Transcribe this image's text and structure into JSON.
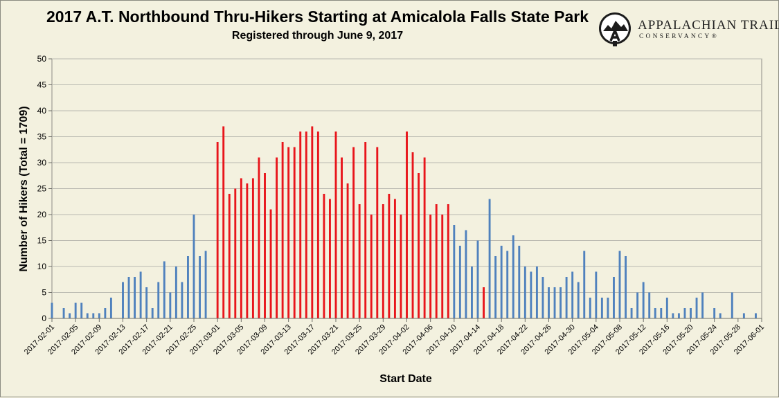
{
  "logo": {
    "name": "APPALACHIAN TRAIL",
    "sub": "CONSERVANCY®"
  },
  "colors": {
    "blue": "#4f81bd",
    "red": "#e8151b",
    "plot_bg": "#f3f1df",
    "grid": "#b9b9b0"
  },
  "chart_data": {
    "type": "bar",
    "title": "2017 A.T. Northbound Thru-Hikers Starting at Amicalola Falls State Park",
    "subtitle": "Registered through June 9, 2017",
    "xlabel": "Start Date",
    "ylabel": "Number of Hikers (Total = 1709)",
    "ylim": [
      0,
      50
    ],
    "yticks": [
      0,
      5,
      10,
      15,
      20,
      25,
      30,
      35,
      40,
      45,
      50
    ],
    "xlim": [
      "2017-02-01",
      "2017-06-01"
    ],
    "xticks": [
      "2017-02-01",
      "2017-02-05",
      "2017-02-09",
      "2017-02-13",
      "2017-02-17",
      "2017-02-21",
      "2017-02-25",
      "2017-03-01",
      "2017-03-05",
      "2017-03-09",
      "2017-03-13",
      "2017-03-17",
      "2017-03-21",
      "2017-03-25",
      "2017-03-29",
      "2017-04-02",
      "2017-04-06",
      "2017-04-10",
      "2017-04-14",
      "2017-04-18",
      "2017-04-22",
      "2017-04-26",
      "2017-04-30",
      "2017-05-04",
      "2017-05-08",
      "2017-05-12",
      "2017-05-16",
      "2017-05-20",
      "2017-05-24",
      "2017-05-28",
      "2017-06-01"
    ],
    "grid": true,
    "legend": "none",
    "red_range": [
      "2017-03-01",
      "2017-04-07"
    ],
    "red_extra": [
      "2017-04-15"
    ],
    "data": [
      {
        "date": "2017-02-01",
        "value": 3
      },
      {
        "date": "2017-02-03",
        "value": 2
      },
      {
        "date": "2017-02-04",
        "value": 1
      },
      {
        "date": "2017-02-05",
        "value": 3
      },
      {
        "date": "2017-02-06",
        "value": 3
      },
      {
        "date": "2017-02-07",
        "value": 1
      },
      {
        "date": "2017-02-08",
        "value": 1
      },
      {
        "date": "2017-02-09",
        "value": 1
      },
      {
        "date": "2017-02-10",
        "value": 2
      },
      {
        "date": "2017-02-11",
        "value": 4
      },
      {
        "date": "2017-02-13",
        "value": 7
      },
      {
        "date": "2017-02-14",
        "value": 8
      },
      {
        "date": "2017-02-15",
        "value": 8
      },
      {
        "date": "2017-02-16",
        "value": 9
      },
      {
        "date": "2017-02-17",
        "value": 6
      },
      {
        "date": "2017-02-18",
        "value": 2
      },
      {
        "date": "2017-02-19",
        "value": 7
      },
      {
        "date": "2017-02-20",
        "value": 11
      },
      {
        "date": "2017-02-21",
        "value": 5
      },
      {
        "date": "2017-02-22",
        "value": 10
      },
      {
        "date": "2017-02-23",
        "value": 7
      },
      {
        "date": "2017-02-24",
        "value": 12
      },
      {
        "date": "2017-02-25",
        "value": 20
      },
      {
        "date": "2017-02-26",
        "value": 12
      },
      {
        "date": "2017-02-27",
        "value": 13
      },
      {
        "date": "2017-03-01",
        "value": 34
      },
      {
        "date": "2017-03-02",
        "value": 37
      },
      {
        "date": "2017-03-03",
        "value": 24
      },
      {
        "date": "2017-03-04",
        "value": 25
      },
      {
        "date": "2017-03-05",
        "value": 27
      },
      {
        "date": "2017-03-06",
        "value": 26
      },
      {
        "date": "2017-03-07",
        "value": 27
      },
      {
        "date": "2017-03-08",
        "value": 31
      },
      {
        "date": "2017-03-09",
        "value": 28
      },
      {
        "date": "2017-03-10",
        "value": 21
      },
      {
        "date": "2017-03-11",
        "value": 31
      },
      {
        "date": "2017-03-12",
        "value": 34
      },
      {
        "date": "2017-03-13",
        "value": 33
      },
      {
        "date": "2017-03-14",
        "value": 33
      },
      {
        "date": "2017-03-15",
        "value": 36
      },
      {
        "date": "2017-03-16",
        "value": 36
      },
      {
        "date": "2017-03-17",
        "value": 37
      },
      {
        "date": "2017-03-18",
        "value": 36
      },
      {
        "date": "2017-03-19",
        "value": 24
      },
      {
        "date": "2017-03-20",
        "value": 23
      },
      {
        "date": "2017-03-21",
        "value": 36
      },
      {
        "date": "2017-03-22",
        "value": 31
      },
      {
        "date": "2017-03-23",
        "value": 26
      },
      {
        "date": "2017-03-24",
        "value": 33
      },
      {
        "date": "2017-03-25",
        "value": 22
      },
      {
        "date": "2017-03-26",
        "value": 34
      },
      {
        "date": "2017-03-27",
        "value": 20
      },
      {
        "date": "2017-03-28",
        "value": 33
      },
      {
        "date": "2017-03-29",
        "value": 22
      },
      {
        "date": "2017-03-30",
        "value": 24
      },
      {
        "date": "2017-03-31",
        "value": 23
      },
      {
        "date": "2017-04-01",
        "value": 20
      },
      {
        "date": "2017-04-02",
        "value": 36
      },
      {
        "date": "2017-04-03",
        "value": 32
      },
      {
        "date": "2017-04-04",
        "value": 28
      },
      {
        "date": "2017-04-05",
        "value": 31
      },
      {
        "date": "2017-04-06",
        "value": 20
      },
      {
        "date": "2017-04-07",
        "value": 22
      },
      {
        "date": "2017-04-08",
        "value": 20
      },
      {
        "date": "2017-04-09",
        "value": 22
      },
      {
        "date": "2017-04-10",
        "value": 18
      },
      {
        "date": "2017-04-11",
        "value": 14
      },
      {
        "date": "2017-04-12",
        "value": 17
      },
      {
        "date": "2017-04-13",
        "value": 10
      },
      {
        "date": "2017-04-14",
        "value": 15
      },
      {
        "date": "2017-04-15",
        "value": 6
      },
      {
        "date": "2017-04-16",
        "value": 23
      },
      {
        "date": "2017-04-17",
        "value": 12
      },
      {
        "date": "2017-04-18",
        "value": 14
      },
      {
        "date": "2017-04-19",
        "value": 13
      },
      {
        "date": "2017-04-20",
        "value": 16
      },
      {
        "date": "2017-04-21",
        "value": 14
      },
      {
        "date": "2017-04-22",
        "value": 10
      },
      {
        "date": "2017-04-23",
        "value": 9
      },
      {
        "date": "2017-04-24",
        "value": 10
      },
      {
        "date": "2017-04-25",
        "value": 8
      },
      {
        "date": "2017-04-26",
        "value": 6
      },
      {
        "date": "2017-04-27",
        "value": 6
      },
      {
        "date": "2017-04-28",
        "value": 6
      },
      {
        "date": "2017-04-29",
        "value": 8
      },
      {
        "date": "2017-04-30",
        "value": 9
      },
      {
        "date": "2017-05-01",
        "value": 7
      },
      {
        "date": "2017-05-02",
        "value": 13
      },
      {
        "date": "2017-05-03",
        "value": 4
      },
      {
        "date": "2017-05-04",
        "value": 9
      },
      {
        "date": "2017-05-05",
        "value": 4
      },
      {
        "date": "2017-05-06",
        "value": 4
      },
      {
        "date": "2017-05-07",
        "value": 8
      },
      {
        "date": "2017-05-08",
        "value": 13
      },
      {
        "date": "2017-05-09",
        "value": 12
      },
      {
        "date": "2017-05-10",
        "value": 2
      },
      {
        "date": "2017-05-11",
        "value": 5
      },
      {
        "date": "2017-05-12",
        "value": 7
      },
      {
        "date": "2017-05-13",
        "value": 5
      },
      {
        "date": "2017-05-14",
        "value": 2
      },
      {
        "date": "2017-05-15",
        "value": 2
      },
      {
        "date": "2017-05-16",
        "value": 4
      },
      {
        "date": "2017-05-17",
        "value": 1
      },
      {
        "date": "2017-05-18",
        "value": 1
      },
      {
        "date": "2017-05-19",
        "value": 2
      },
      {
        "date": "2017-05-20",
        "value": 2
      },
      {
        "date": "2017-05-21",
        "value": 4
      },
      {
        "date": "2017-05-22",
        "value": 5
      },
      {
        "date": "2017-05-24",
        "value": 2
      },
      {
        "date": "2017-05-25",
        "value": 1
      },
      {
        "date": "2017-05-27",
        "value": 5
      },
      {
        "date": "2017-05-29",
        "value": 1
      },
      {
        "date": "2017-05-31",
        "value": 1
      }
    ]
  }
}
